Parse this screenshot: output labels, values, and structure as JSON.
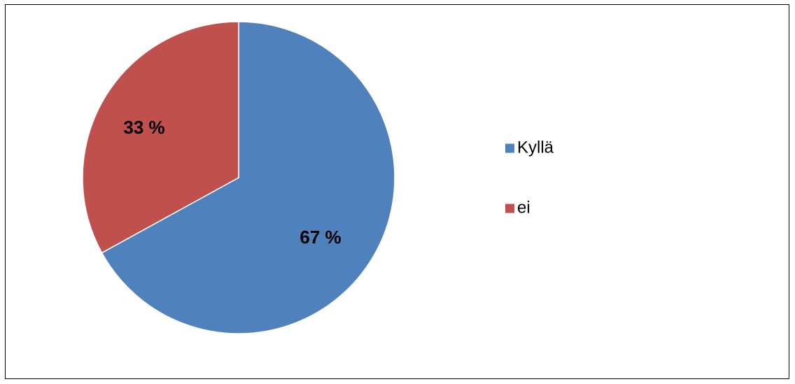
{
  "chart_data": {
    "type": "pie",
    "categories": [
      "Kyllä",
      "ei"
    ],
    "values": [
      67,
      33
    ],
    "data_labels": [
      "67 %",
      "33 %"
    ],
    "colors": [
      "#4f81bd",
      "#c0504d"
    ],
    "legend_position": "right"
  }
}
